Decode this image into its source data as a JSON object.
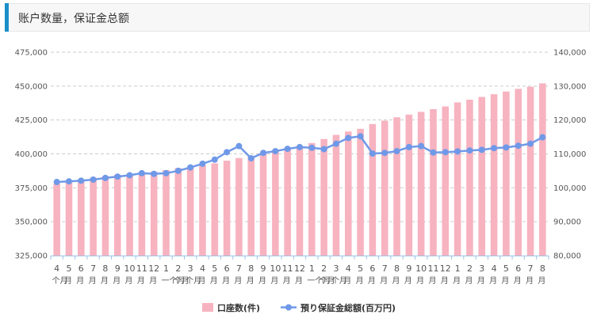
{
  "header": {
    "title": "账户数量，保证金总额"
  },
  "chart_data": {
    "type": "bar+line",
    "categories": [
      [
        "4",
        "个月"
      ],
      [
        "5",
        "月"
      ],
      [
        "6",
        "月"
      ],
      [
        "7",
        "月"
      ],
      [
        "8",
        "月"
      ],
      [
        "9",
        "月"
      ],
      [
        "10",
        "月"
      ],
      [
        "11",
        "月"
      ],
      [
        "12",
        "月"
      ],
      [
        "1",
        "一个月"
      ],
      [
        "2",
        "个月"
      ],
      [
        "3",
        "个月"
      ],
      [
        "4",
        "月"
      ],
      [
        "5",
        "月"
      ],
      [
        "6",
        "月"
      ],
      [
        "7",
        "月"
      ],
      [
        "8",
        "月"
      ],
      [
        "9",
        "月"
      ],
      [
        "10",
        "月"
      ],
      [
        "11",
        "月"
      ],
      [
        "12",
        "月"
      ],
      [
        "1",
        "一个月"
      ],
      [
        "2",
        "个月"
      ],
      [
        "3",
        "个月"
      ],
      [
        "4",
        "月"
      ],
      [
        "5",
        "月"
      ],
      [
        "6",
        "月"
      ],
      [
        "7",
        "月"
      ],
      [
        "8",
        "月"
      ],
      [
        "9",
        "月"
      ],
      [
        "10",
        "月"
      ],
      [
        "11",
        "月"
      ],
      [
        "12",
        "月"
      ],
      [
        "1",
        "月"
      ],
      [
        "2",
        "月"
      ],
      [
        "3",
        "月"
      ],
      [
        "4",
        "月"
      ],
      [
        "5",
        "月"
      ],
      [
        "6",
        "月"
      ],
      [
        "7",
        "月"
      ],
      [
        "8",
        "月"
      ]
    ],
    "series": [
      {
        "name": "口座数(件)",
        "type": "bar",
        "axis": "left",
        "color": "#f7b3c0",
        "values": [
          378000,
          379500,
          381000,
          382500,
          383500,
          384500,
          385000,
          386000,
          387000,
          388000,
          389500,
          390500,
          391500,
          393000,
          395000,
          397000,
          398500,
          401000,
          403000,
          404500,
          406000,
          408000,
          411000,
          414000,
          416500,
          418500,
          422000,
          424500,
          427000,
          429000,
          431000,
          433000,
          435000,
          438000,
          440000,
          442000,
          444000,
          446000,
          448000,
          449500,
          452000
        ]
      },
      {
        "name": "預り保証金総額(百万円)",
        "type": "line",
        "axis": "right",
        "color": "#6f99e8",
        "values": [
          101700,
          101900,
          102100,
          102400,
          102900,
          103300,
          103700,
          104300,
          104100,
          104300,
          105000,
          106000,
          107100,
          108300,
          110500,
          112300,
          108700,
          110300,
          110800,
          111500,
          112000,
          111800,
          111400,
          113000,
          114700,
          115200,
          110100,
          110300,
          110800,
          112000,
          112300,
          110400,
          110500,
          110700,
          111000,
          111200,
          111700,
          111900,
          112400,
          113000,
          114900
        ]
      }
    ],
    "y_left": {
      "min": 325000,
      "max": 475000,
      "ticks": [
        "325,000",
        "350,000",
        "375,000",
        "400,000",
        "425,000",
        "450,000",
        "475,000"
      ]
    },
    "y_right": {
      "min": 80000,
      "max": 140000,
      "ticks": [
        "80,000",
        "90,000",
        "100,000",
        "110,000",
        "120,000",
        "130,000",
        "140,000"
      ]
    },
    "grid": true,
    "legend_position": "bottom"
  }
}
